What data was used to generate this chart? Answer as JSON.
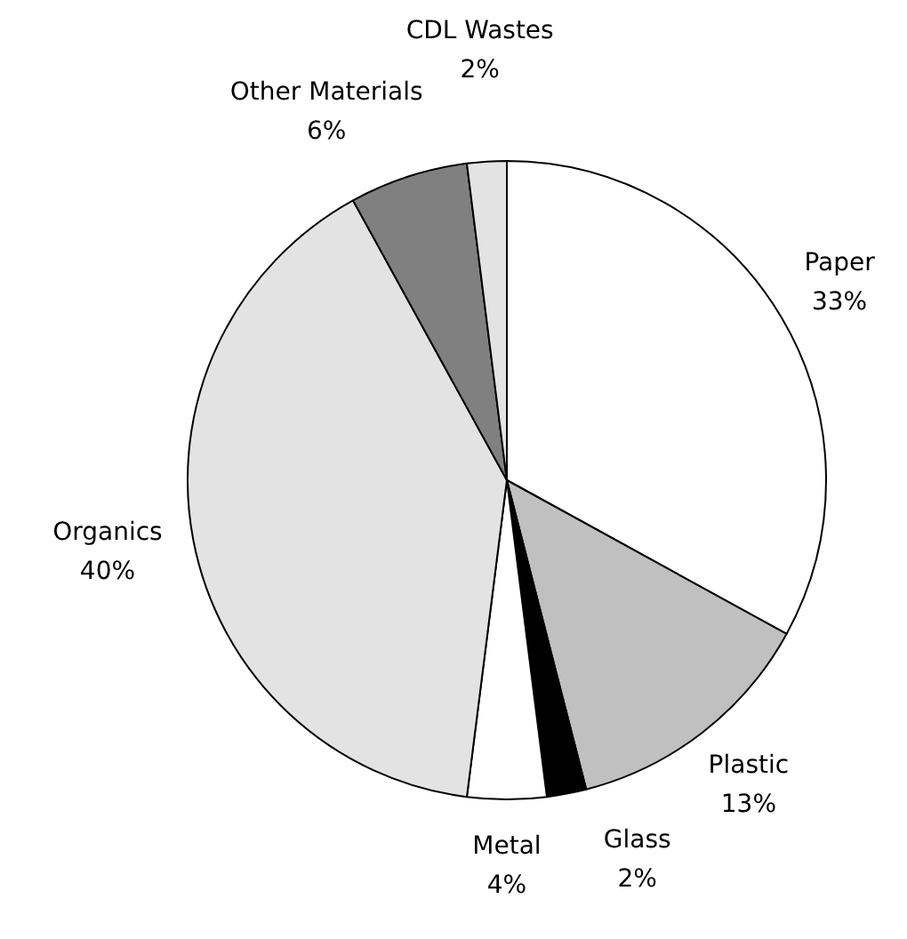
{
  "chart_data": {
    "type": "pie",
    "categories": [
      "Paper",
      "Plastic",
      "Glass",
      "Metal",
      "Organics",
      "Other Materials",
      "CDL Wastes"
    ],
    "values": [
      33,
      13,
      2,
      4,
      40,
      6,
      2
    ],
    "value_labels": [
      "33%",
      "13%",
      "2%",
      "4%",
      "40%",
      "6%",
      "2%"
    ],
    "colors": [
      "#ffffff",
      "#c0c0c0",
      "#000000",
      "#ffffff",
      "#e3e3e3",
      "#808080",
      "#e3e3e3"
    ],
    "legend": false
  }
}
